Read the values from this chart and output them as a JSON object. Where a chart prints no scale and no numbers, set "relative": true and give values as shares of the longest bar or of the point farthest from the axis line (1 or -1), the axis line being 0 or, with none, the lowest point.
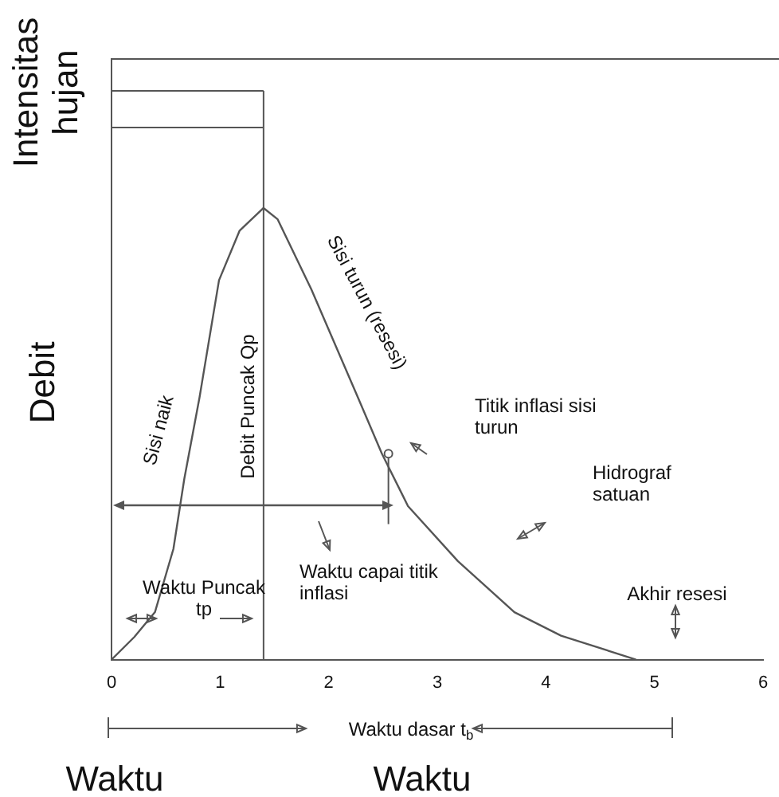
{
  "chart_data": {
    "type": "line",
    "relative": true,
    "ylabel": "Debit",
    "xlabel": "Waktu",
    "x": [
      0,
      0.21,
      0.4,
      0.57,
      0.67,
      0.81,
      0.99,
      1.18,
      1.4,
      1.53,
      1.84,
      2.27,
      2.49,
      2.73,
      3.19,
      3.71,
      4.14,
      4.83
    ],
    "series": [
      {
        "color": "#555555",
        "values": [
          0,
          0.05,
          0.105,
          0.245,
          0.4,
          0.58,
          0.84,
          0.95,
          1,
          0.975,
          0.82,
          0.58,
          0.456,
          0.34,
          0.218,
          0.105,
          0.053,
          0
        ]
      }
    ],
    "xlim": [
      0,
      6
    ],
    "xticks": [
      0,
      1,
      2,
      3,
      4,
      5,
      6
    ],
    "ref_lines": [
      {
        "axis": "x",
        "value": 1.4,
        "label": "Debit Puncak Qp"
      }
    ],
    "annotations": [
      "Intensitas hujan",
      "Sisi naik",
      "Sisi turun (resesi)",
      "Titik inflasi sisi turun",
      "Hidrograf satuan",
      "Waktu capai titik inflasi",
      "Waktu Puncak tp",
      "Akhir resesi",
      "Waktu dasar t$_{b}$",
      "Waktu"
    ],
    "grid": false,
    "legend": false,
    "marker": "none",
    "line_style": "solid"
  }
}
